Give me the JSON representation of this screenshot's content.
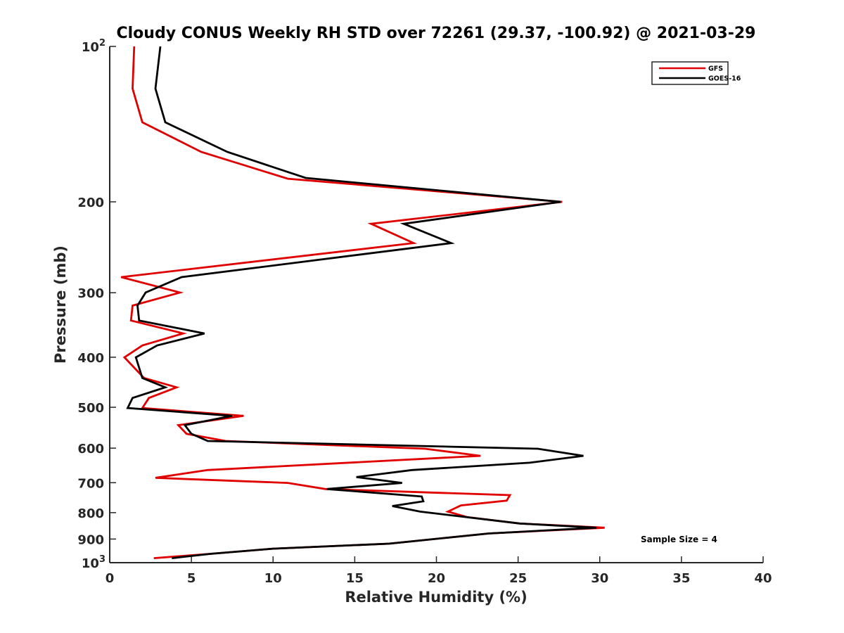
{
  "chart_data": {
    "type": "line",
    "title": "Cloudy CONUS Weekly RH STD over 72261 (29.37, -100.92) @ 2021-03-29",
    "xlabel": "Relative Humidity (%)",
    "ylabel": "Pressure (mb)",
    "xlim": [
      0,
      40
    ],
    "ylim": [
      100,
      1000
    ],
    "yscale": "log",
    "yreversed": true,
    "grid": false,
    "xticks": [
      0,
      5,
      10,
      15,
      20,
      25,
      30,
      35,
      40
    ],
    "xtick_labels": [
      "0",
      "5",
      "10",
      "15",
      "20",
      "25",
      "30",
      "35",
      "40"
    ],
    "yticks": [
      100,
      200,
      300,
      400,
      500,
      600,
      700,
      800,
      900,
      1000
    ],
    "ytick_labels": [
      "10^2",
      "200",
      "300",
      "400",
      "500",
      "600",
      "700",
      "800",
      "900",
      "10^3"
    ],
    "legend": {
      "placement": "top-right",
      "entries": [
        "GFS",
        "GOES-16"
      ]
    },
    "annotation": "Sample Size = 4",
    "series": [
      {
        "name": "GFS",
        "color": "#e00000",
        "points": [
          [
            1.5,
            100
          ],
          [
            1.4,
            120.7
          ],
          [
            2.0,
            140.3
          ],
          [
            5.6,
            160.1
          ],
          [
            10.9,
            180.4
          ],
          [
            27.7,
            200.0
          ],
          [
            16.0,
            220.6
          ],
          [
            18.6,
            240.4
          ],
          [
            0.7,
            279.8
          ],
          [
            4.3,
            299.7
          ],
          [
            1.4,
            317.7
          ],
          [
            1.3,
            339.6
          ],
          [
            4.5,
            359.7
          ],
          [
            2.0,
            379.6
          ],
          [
            0.9,
            400.2
          ],
          [
            2.1,
            438.9
          ],
          [
            4.1,
            457.4
          ],
          [
            2.4,
            479.7
          ],
          [
            2.0,
            501.6
          ],
          [
            8.2,
            519.6
          ],
          [
            4.2,
            541.6
          ],
          [
            4.7,
            562.9
          ],
          [
            7.1,
            581.1
          ],
          [
            19.3,
            601.6
          ],
          [
            22.7,
            620.9
          ],
          [
            6.0,
            661.5
          ],
          [
            2.8,
            684.9
          ],
          [
            10.9,
            700.7
          ],
          [
            13.2,
            720.1
          ],
          [
            24.5,
            740.0
          ],
          [
            24.3,
            758.2
          ],
          [
            21.5,
            774.6
          ],
          [
            20.7,
            796.4
          ],
          [
            21.9,
            816.4
          ],
          [
            25.1,
            839.7
          ],
          [
            30.3,
            855.6
          ],
          [
            23.2,
            878.0
          ],
          [
            17.1,
            918.8
          ],
          [
            10.0,
            939.6
          ],
          [
            6.2,
            961.1
          ],
          [
            2.7,
            980.0
          ]
        ]
      },
      {
        "name": "GOES-16",
        "color": "#000000",
        "points": [
          [
            3.1,
            100
          ],
          [
            2.8,
            120.7
          ],
          [
            3.4,
            140.3
          ],
          [
            7.2,
            160.1
          ],
          [
            12.0,
            179.8
          ],
          [
            27.6,
            200.0
          ],
          [
            18.0,
            220.6
          ],
          [
            20.9,
            240.4
          ],
          [
            4.4,
            279.8
          ],
          [
            2.2,
            299.7
          ],
          [
            1.7,
            317.7
          ],
          [
            1.8,
            339.6
          ],
          [
            5.8,
            359.7
          ],
          [
            2.9,
            379.6
          ],
          [
            1.6,
            400.2
          ],
          [
            2.0,
            438.9
          ],
          [
            3.4,
            457.4
          ],
          [
            1.4,
            479.7
          ],
          [
            1.1,
            501.6
          ],
          [
            7.5,
            519.6
          ],
          [
            4.6,
            541.6
          ],
          [
            5.0,
            562.9
          ],
          [
            6.0,
            581.1
          ],
          [
            26.2,
            601.6
          ],
          [
            29.0,
            620.9
          ],
          [
            25.7,
            640.4
          ],
          [
            18.5,
            661.5
          ],
          [
            15.1,
            682.6
          ],
          [
            17.9,
            700.7
          ],
          [
            13.3,
            720.1
          ],
          [
            19.1,
            744.5
          ],
          [
            19.2,
            760.6
          ],
          [
            17.3,
            776.9
          ],
          [
            19.0,
            796.4
          ],
          [
            25.1,
            839.7
          ],
          [
            29.8,
            855.6
          ],
          [
            23.2,
            878.0
          ],
          [
            17.1,
            918.8
          ],
          [
            10.0,
            939.6
          ],
          [
            6.2,
            961.1
          ],
          [
            3.8,
            980.0
          ]
        ]
      }
    ]
  }
}
